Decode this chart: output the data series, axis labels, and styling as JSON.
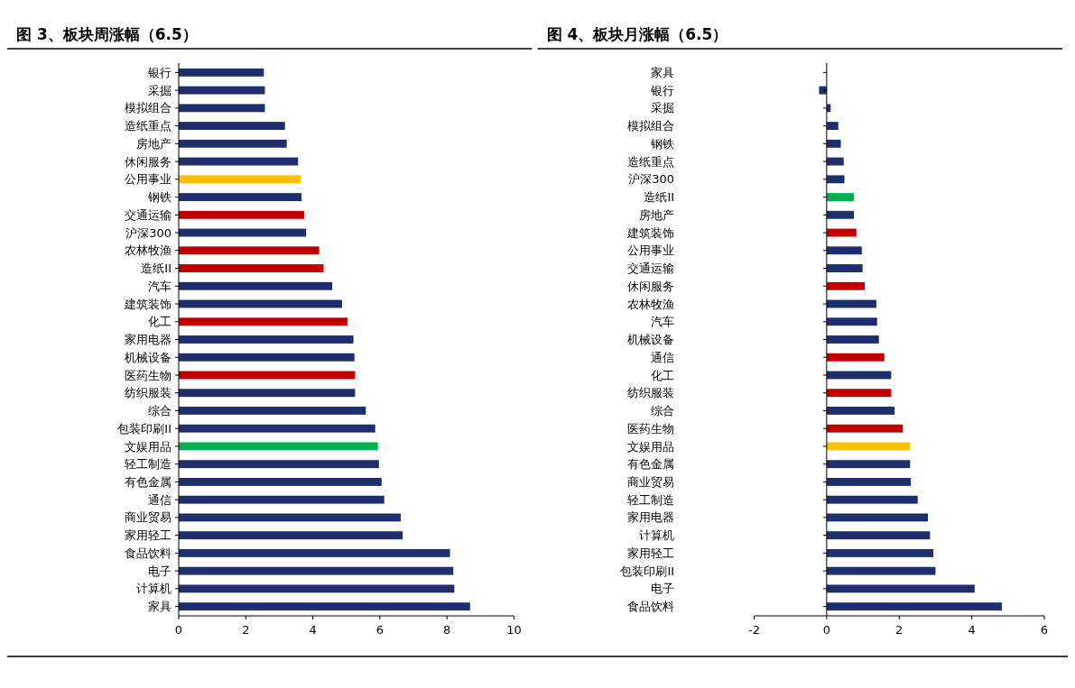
{
  "chart_data": [
    {
      "type": "bar",
      "orientation": "horizontal",
      "title": "图 3、板块周涨幅（6.5）",
      "categories": [
        "银行",
        "采掘",
        "模拟组合",
        "造纸重点",
        "房地产",
        "休闲服务",
        "公用事业",
        "钢铁",
        "交通运输",
        "沪深300",
        "农林牧渔",
        "造纸II",
        "汽车",
        "建筑装饰",
        "化工",
        "家用电器",
        "机械设备",
        "医药生物",
        "纺织服装",
        "综合",
        "包装印刷II",
        "文娱用品",
        "轻工制造",
        "有色金属",
        "通信",
        "商业贸易",
        "家用轻工",
        "食品饮料",
        "电子",
        "计算机",
        "家具"
      ],
      "values": [
        2.54,
        2.57,
        2.57,
        3.17,
        3.22,
        3.56,
        3.64,
        3.66,
        3.74,
        3.8,
        4.19,
        4.32,
        4.58,
        4.87,
        5.03,
        5.21,
        5.24,
        5.26,
        5.26,
        5.58,
        5.86,
        5.94,
        5.97,
        6.05,
        6.13,
        6.62,
        6.68,
        8.09,
        8.19,
        8.22,
        8.69
      ],
      "colors": [
        "#1f2f6e",
        "#1f2f6e",
        "#1f2f6e",
        "#1f2f6e",
        "#1f2f6e",
        "#1f2f6e",
        "#ffc000",
        "#1f2f6e",
        "#c00000",
        "#1f2f6e",
        "#c00000",
        "#c00000",
        "#1f2f6e",
        "#1f2f6e",
        "#c00000",
        "#1f2f6e",
        "#1f2f6e",
        "#c00000",
        "#1f2f6e",
        "#1f2f6e",
        "#1f2f6e",
        "#00b050",
        "#1f2f6e",
        "#1f2f6e",
        "#1f2f6e",
        "#1f2f6e",
        "#1f2f6e",
        "#1f2f6e",
        "#1f2f6e",
        "#1f2f6e",
        "#1f2f6e"
      ],
      "xlim": [
        0,
        10
      ],
      "xticks": [
        0,
        2,
        4,
        6,
        8,
        10
      ]
    },
    {
      "type": "bar",
      "orientation": "horizontal",
      "title": "图 4、板块月涨幅（6.5）",
      "categories": [
        "家具",
        "银行",
        "采掘",
        "模拟组合",
        "钢铁",
        "造纸重点",
        "沪深300",
        "造纸II",
        "房地产",
        "建筑装饰",
        "公用事业",
        "交通运输",
        "休闲服务",
        "农林牧渔",
        "汽车",
        "机械设备",
        "通信",
        "化工",
        "纺织服装",
        "综合",
        "医药生物",
        "文娱用品",
        "有色金属",
        "商业贸易",
        "轻工制造",
        "家用电器",
        "计算机",
        "家用轻工",
        "包装印刷II",
        "电子",
        "食品饮料"
      ],
      "values": [
        0,
        -0.21,
        0.11,
        0.32,
        0.39,
        0.47,
        0.49,
        0.75,
        0.75,
        0.82,
        0.97,
        0.99,
        1.05,
        1.37,
        1.39,
        1.44,
        1.59,
        1.78,
        1.78,
        1.87,
        2.1,
        2.3,
        2.3,
        2.32,
        2.51,
        2.79,
        2.85,
        2.94,
        3.0,
        4.08,
        4.83
      ],
      "colors": [
        "#1f2f6e",
        "#1f2f6e",
        "#1f2f6e",
        "#1f2f6e",
        "#1f2f6e",
        "#1f2f6e",
        "#1f2f6e",
        "#00b050",
        "#1f2f6e",
        "#c00000",
        "#1f2f6e",
        "#1f2f6e",
        "#c00000",
        "#1f2f6e",
        "#1f2f6e",
        "#1f2f6e",
        "#c00000",
        "#1f2f6e",
        "#c00000",
        "#1f2f6e",
        "#c00000",
        "#ffc000",
        "#1f2f6e",
        "#1f2f6e",
        "#1f2f6e",
        "#1f2f6e",
        "#1f2f6e",
        "#1f2f6e",
        "#1f2f6e",
        "#1f2f6e",
        "#1f2f6e"
      ],
      "xlim": [
        -2,
        6
      ],
      "xticks": [
        -2,
        0,
        2,
        4,
        6
      ]
    }
  ]
}
